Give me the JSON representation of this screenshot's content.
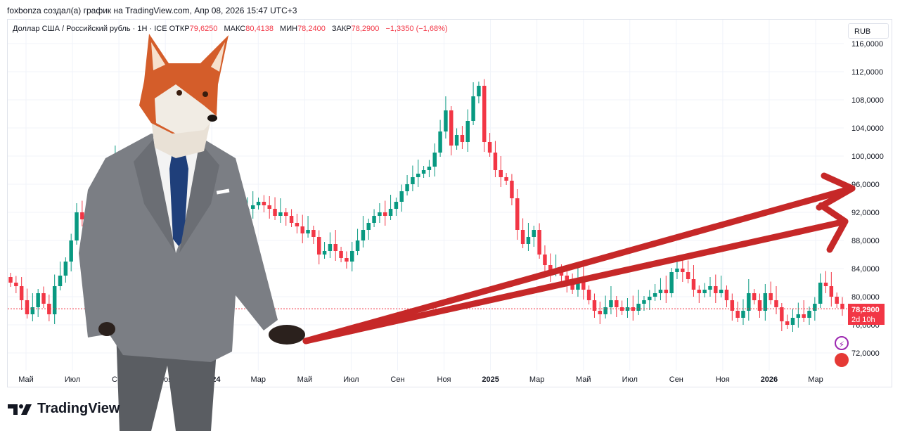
{
  "topline": "foxbonza создал(а) график на TradingView.com, Апр 08, 2026 15:47 UTC+3",
  "legend": {
    "symbol": "Доллар США / Российский рубль · 1Н · ICE",
    "open_label": "ОТКР",
    "open_value": "79,6250",
    "high_label": "МАКС",
    "high_value": "80,4138",
    "low_label": "МИН",
    "low_value": "78,2400",
    "close_label": "ЗАКР",
    "close_value": "78,2900",
    "change": "−1,3350 (−1,68%)"
  },
  "currency": "RUB",
  "price_tag": {
    "price": "78,2900",
    "countdown": "2d 10h"
  },
  "brand": "TradingView",
  "colors": {
    "up": "#089981",
    "down": "#f23645",
    "arrow": "#c62828"
  },
  "chart_data": {
    "type": "candlestick",
    "y_ticks": [
      "72,0000",
      "76,0000",
      "80,0000",
      "84,0000",
      "88,0000",
      "92,0000",
      "96,0000",
      "100,0000",
      "104,0000",
      "108,0000",
      "112,0000",
      "116,0000"
    ],
    "ylim": [
      69,
      117
    ],
    "x_ticks": [
      "Май",
      "Июл",
      "Сен",
      "Ноя",
      "2024",
      "Мар",
      "Май",
      "Июл",
      "Сен",
      "Ноя",
      "2025",
      "Мар",
      "Май",
      "Июл",
      "Сен",
      "Ноя",
      "2026",
      "Мар"
    ],
    "last_price": 78.29,
    "closes": [
      82.0,
      81.5,
      79.5,
      77.5,
      78.5,
      80.5,
      79.0,
      77.5,
      81.5,
      83.0,
      85.0,
      88.0,
      92.0,
      91.0,
      88.5,
      91.5,
      93.5,
      96.5,
      98.0,
      99.5,
      97.5,
      92.0,
      90.5,
      91.5,
      89.0,
      90.5,
      92.5,
      91.0,
      89.5,
      88.0,
      89.5,
      92.0,
      92.5,
      93.5,
      94.0,
      95.0,
      94.0,
      92.0,
      91.0,
      91.5,
      92.5,
      93.0,
      92.0,
      92.5,
      93.0,
      93.5,
      93.0,
      92.5,
      91.5,
      92.0,
      91.5,
      90.5,
      90.0,
      89.0,
      89.5,
      88.5,
      86.0,
      86.5,
      87.5,
      86.5,
      85.5,
      85.0,
      86.5,
      88.0,
      89.5,
      90.5,
      91.5,
      92.0,
      91.5,
      92.5,
      93.5,
      95.0,
      96.0,
      97.0,
      97.5,
      98.0,
      98.5,
      100.5,
      103.5,
      106.5,
      101.5,
      103.0,
      102.0,
      105.0,
      108.5,
      110.0,
      102.0,
      100.5,
      98.0,
      97.0,
      96.5,
      94.0,
      89.5,
      87.5,
      88.5,
      89.5,
      86.0,
      84.5,
      83.5,
      84.0,
      83.0,
      82.0,
      81.0,
      82.5,
      81.0,
      79.5,
      78.0,
      77.5,
      78.5,
      79.5,
      78.5,
      78.0,
      78.5,
      78.0,
      79.0,
      79.5,
      80.0,
      80.5,
      81.0,
      80.5,
      83.5,
      84.0,
      83.5,
      82.5,
      81.0,
      80.5,
      81.0,
      81.5,
      80.5,
      81.0,
      79.5,
      78.0,
      77.0,
      78.0,
      80.5,
      79.5,
      78.0,
      80.5,
      79.5,
      78.5,
      76.5,
      76.0,
      77.0,
      77.5,
      77.0,
      78.0,
      79.0,
      82.0,
      81.5,
      80.0,
      79.0,
      78.29
    ]
  }
}
